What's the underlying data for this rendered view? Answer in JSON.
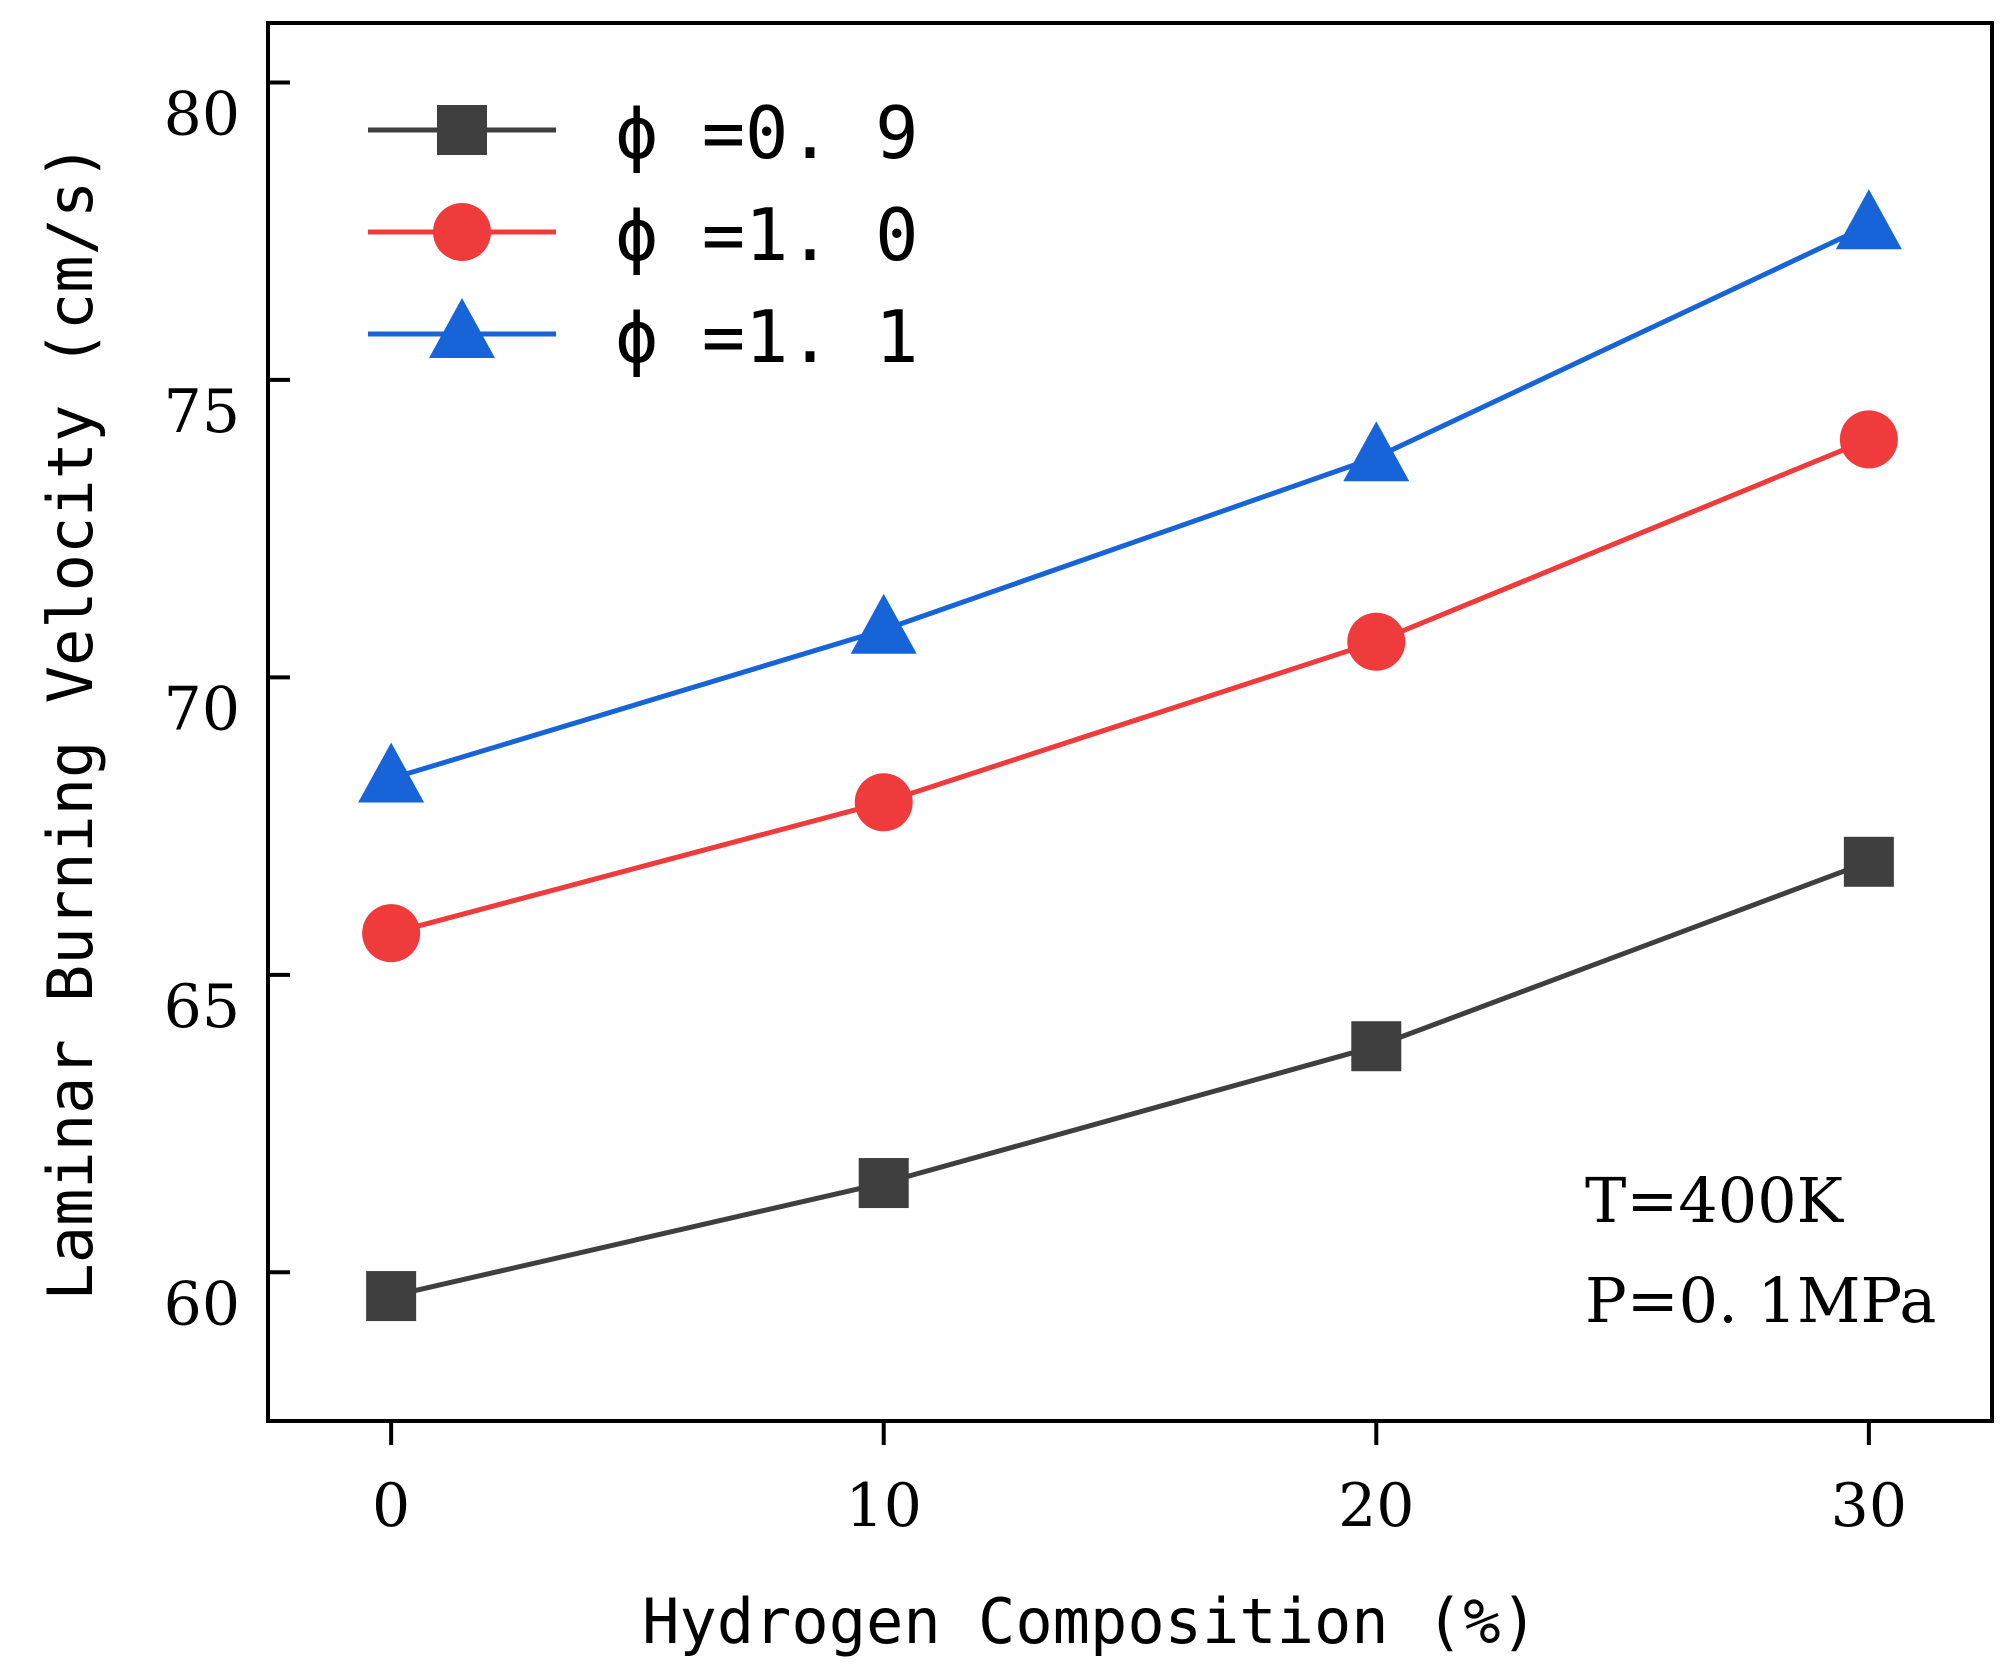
{
  "chart_data": {
    "type": "line",
    "title": "",
    "xlabel": "Hydrogen Composition (%)",
    "ylabel": "Laminar Burning Velocity (cm/s)",
    "x": [
      0,
      10,
      20,
      30
    ],
    "x_ticks": [
      "0",
      "10",
      "20",
      "30"
    ],
    "y_ticks": [
      "60",
      "65",
      "70",
      "75",
      "80"
    ],
    "xlim": [
      -2.5,
      32.5
    ],
    "ylim": [
      57.5,
      81
    ],
    "grid": false,
    "legend_position": "top-left",
    "series": [
      {
        "name": "ϕ=0.9",
        "label": "ϕ =0. 9",
        "marker": "square",
        "color": "#3f3f3f",
        "values": [
          59.6,
          61.5,
          63.8,
          66.9
        ]
      },
      {
        "name": "ϕ=1.0",
        "label": "ϕ =1. 0",
        "marker": "circle",
        "color": "#ef3b3b",
        "values": [
          65.7,
          67.9,
          70.6,
          74.0
        ]
      },
      {
        "name": "ϕ=1.1",
        "label": "ϕ =1. 1",
        "marker": "triangle",
        "color": "#1763d8",
        "values": [
          68.3,
          70.8,
          73.7,
          77.6
        ]
      }
    ],
    "annotations": [
      "T=400K",
      "P=0. 1MPa"
    ]
  }
}
